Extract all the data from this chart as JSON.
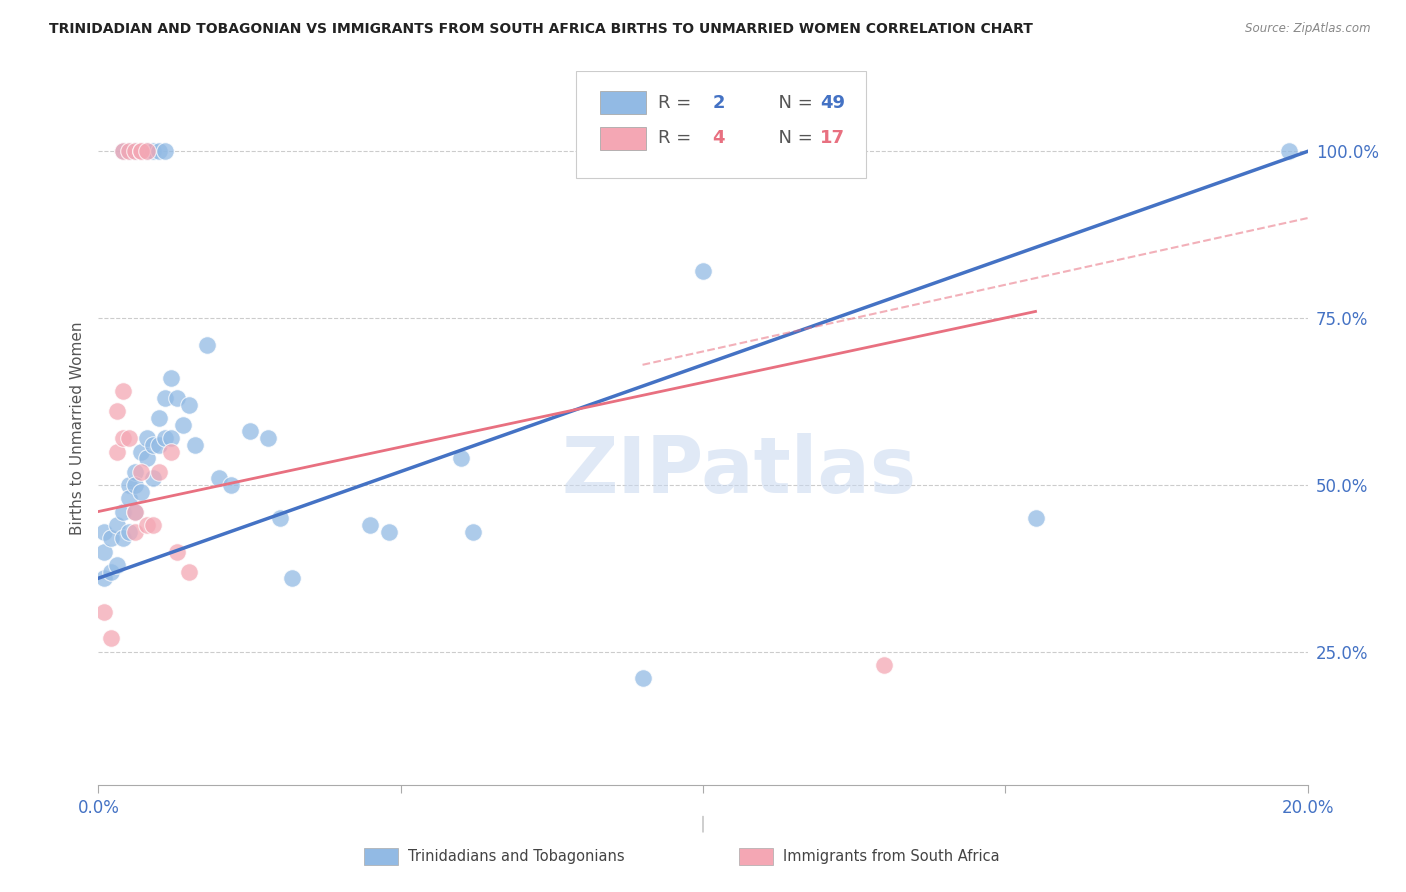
{
  "title": "TRINIDADIAN AND TOBAGONIAN VS IMMIGRANTS FROM SOUTH AFRICA BIRTHS TO UNMARRIED WOMEN CORRELATION CHART",
  "source": "Source: ZipAtlas.com",
  "ylabel": "Births to Unmarried Women",
  "y_tick_labels": [
    "25.0%",
    "50.0%",
    "75.0%",
    "100.0%"
  ],
  "y_tick_positions": [
    0.25,
    0.5,
    0.75,
    1.0
  ],
  "x_range": [
    0.0,
    0.2
  ],
  "y_range": [
    0.05,
    1.12
  ],
  "legend_blue_n": "49",
  "legend_pink_n": "17",
  "blue_color": "#92BAE4",
  "pink_color": "#F4A7B4",
  "blue_line_color": "#4472C4",
  "pink_line_color": "#E87080",
  "blue_points_x": [
    0.001,
    0.001,
    0.001,
    0.002,
    0.002,
    0.003,
    0.003,
    0.004,
    0.004,
    0.005,
    0.005,
    0.005,
    0.006,
    0.006,
    0.006,
    0.007,
    0.007,
    0.008,
    0.008,
    0.009,
    0.009,
    0.01,
    0.01,
    0.011,
    0.011,
    0.012,
    0.012,
    0.013,
    0.014,
    0.015,
    0.016,
    0.018,
    0.02,
    0.022,
    0.025,
    0.028,
    0.03,
    0.032,
    0.045,
    0.048,
    0.06,
    0.062,
    0.09,
    0.1,
    0.155,
    0.197
  ],
  "blue_points_y": [
    0.43,
    0.4,
    0.36,
    0.42,
    0.37,
    0.44,
    0.38,
    0.46,
    0.42,
    0.5,
    0.48,
    0.43,
    0.52,
    0.5,
    0.46,
    0.55,
    0.49,
    0.57,
    0.54,
    0.56,
    0.51,
    0.6,
    0.56,
    0.63,
    0.57,
    0.66,
    0.57,
    0.63,
    0.59,
    0.62,
    0.56,
    0.71,
    0.51,
    0.5,
    0.58,
    0.57,
    0.45,
    0.36,
    0.44,
    0.43,
    0.54,
    0.43,
    0.21,
    0.82,
    0.45,
    1.0
  ],
  "pink_points_x": [
    0.001,
    0.002,
    0.003,
    0.003,
    0.004,
    0.004,
    0.005,
    0.006,
    0.006,
    0.007,
    0.008,
    0.009,
    0.01,
    0.012,
    0.013,
    0.015,
    0.13
  ],
  "pink_points_y": [
    0.31,
    0.27,
    0.61,
    0.55,
    0.64,
    0.57,
    0.57,
    0.46,
    0.43,
    0.52,
    0.44,
    0.44,
    0.52,
    0.55,
    0.4,
    0.37,
    0.23
  ],
  "blue_top_points_x": [
    0.004,
    0.005,
    0.006,
    0.007,
    0.007,
    0.008,
    0.008,
    0.009,
    0.01,
    0.011
  ],
  "blue_top_points_y": [
    1.0,
    1.0,
    1.0,
    1.0,
    1.0,
    1.0,
    1.0,
    1.0,
    1.0,
    1.0
  ],
  "pink_top_points_x": [
    0.004,
    0.005,
    0.006,
    0.007,
    0.007,
    0.008
  ],
  "pink_top_points_y": [
    1.0,
    1.0,
    1.0,
    1.0,
    1.0,
    1.0
  ],
  "blue_trendline": [
    0.0,
    0.36,
    0.2,
    1.0
  ],
  "pink_trendline_solid": [
    0.0,
    0.46,
    0.155,
    0.76
  ],
  "pink_trendline_dashed": [
    0.09,
    0.68,
    0.2,
    0.9
  ]
}
